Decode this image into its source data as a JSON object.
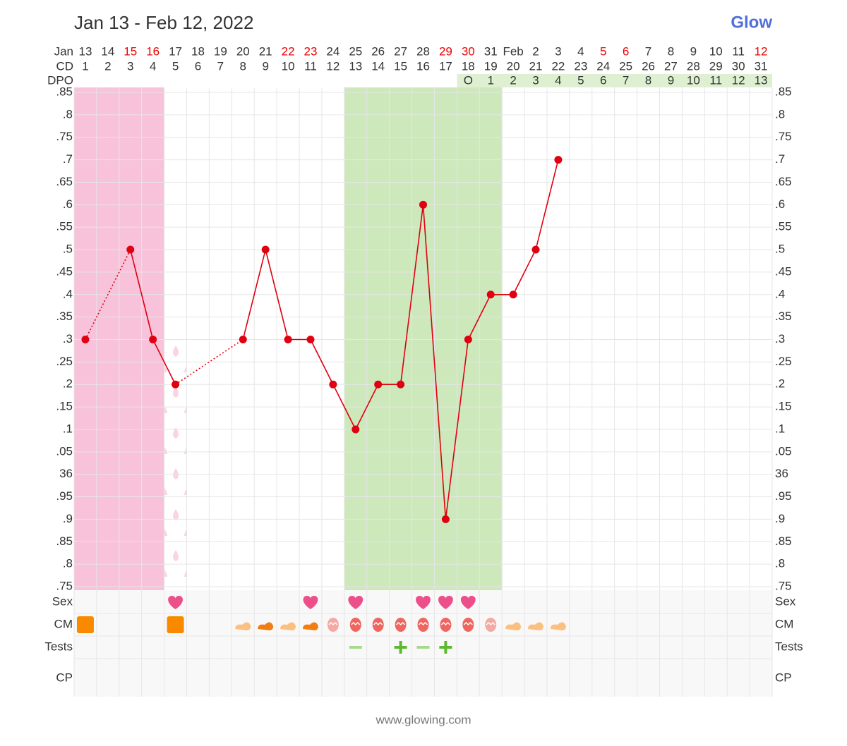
{
  "chart_data": {
    "type": "line",
    "title": "Jan 13 - Feb 12, 2022",
    "logo": "Glow",
    "footer": "www.glowing.com",
    "date_row_label": "Jan",
    "cd_label": "CD",
    "dpo_label": "DPO",
    "categories": [
      "13",
      "14",
      "15",
      "16",
      "17",
      "18",
      "19",
      "20",
      "21",
      "22",
      "23",
      "24",
      "25",
      "26",
      "27",
      "28",
      "29",
      "30",
      "31",
      "Feb",
      "2",
      "3",
      "4",
      "5",
      "6",
      "7",
      "8",
      "9",
      "10",
      "11",
      "12"
    ],
    "category_colors": [
      "#333",
      "#333",
      "#e00",
      "#e00",
      "#333",
      "#333",
      "#333",
      "#333",
      "#333",
      "#e00",
      "#e00",
      "#333",
      "#333",
      "#333",
      "#333",
      "#333",
      "#e00",
      "#e00",
      "#333",
      "#333",
      "#333",
      "#333",
      "#333",
      "#e00",
      "#e00",
      "#333",
      "#333",
      "#333",
      "#333",
      "#333",
      "#e00"
    ],
    "cd": [
      1,
      2,
      3,
      4,
      5,
      6,
      7,
      8,
      9,
      10,
      11,
      12,
      13,
      14,
      15,
      16,
      17,
      18,
      19,
      20,
      21,
      22,
      23,
      24,
      25,
      26,
      27,
      28,
      29,
      30,
      31
    ],
    "dpo": [
      null,
      null,
      null,
      null,
      null,
      null,
      null,
      null,
      null,
      null,
      null,
      null,
      null,
      null,
      null,
      null,
      null,
      "O",
      1,
      2,
      3,
      4,
      5,
      6,
      7,
      8,
      9,
      10,
      11,
      12,
      13
    ],
    "values": [
      36.3,
      null,
      36.5,
      36.3,
      36.2,
      null,
      null,
      36.3,
      36.5,
      36.3,
      36.3,
      36.2,
      36.1,
      36.2,
      36.2,
      36.6,
      35.9,
      36.3,
      36.4,
      36.4,
      36.5,
      36.7,
      null,
      null,
      null,
      null,
      null,
      null,
      null,
      null,
      null
    ],
    "color": "#e00010",
    "period_cd": [
      1,
      4
    ],
    "spotting_cd": [
      5,
      5
    ],
    "fertile_cd": [
      13,
      19
    ],
    "ylim": [
      35.75,
      36.85
    ],
    "yticks": [
      {
        "value": 36.85,
        "label": ".85"
      },
      {
        "value": 36.8,
        "label": ".8"
      },
      {
        "value": 36.75,
        "label": ".75"
      },
      {
        "value": 36.7,
        "label": ".7"
      },
      {
        "value": 36.65,
        "label": ".65"
      },
      {
        "value": 36.6,
        "label": ".6"
      },
      {
        "value": 36.55,
        "label": ".55"
      },
      {
        "value": 36.5,
        "label": ".5"
      },
      {
        "value": 36.45,
        "label": ".45"
      },
      {
        "value": 36.4,
        "label": ".4"
      },
      {
        "value": 36.35,
        "label": ".35"
      },
      {
        "value": 36.3,
        "label": ".3"
      },
      {
        "value": 36.25,
        "label": ".25"
      },
      {
        "value": 36.2,
        "label": ".2"
      },
      {
        "value": 36.15,
        "label": ".15"
      },
      {
        "value": 36.1,
        "label": ".1"
      },
      {
        "value": 36.05,
        "label": ".05"
      },
      36,
      {
        "value": 35.95,
        "label": ".95"
      },
      {
        "value": 35.9,
        "label": ".9"
      },
      {
        "value": 35.85,
        "label": ".85"
      },
      {
        "value": 35.8,
        "label": ".8"
      },
      {
        "value": 35.75,
        "label": ".75"
      }
    ],
    "grid": true,
    "rows": [
      "Sex",
      "CM",
      "Tests",
      "CP"
    ]
  }
}
